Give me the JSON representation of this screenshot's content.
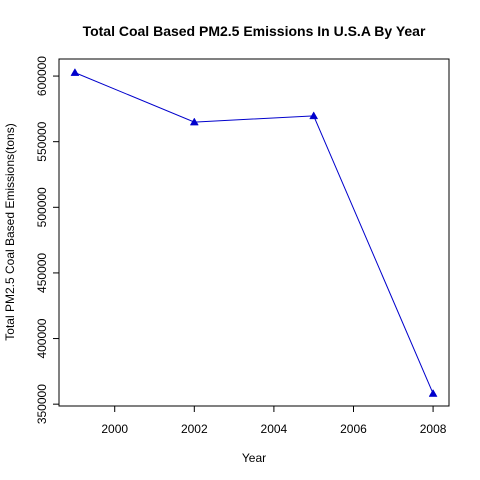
{
  "chart_data": {
    "type": "line",
    "title": "Total Coal Based PM2.5 Emissions In U.S.A By Year",
    "xlabel": "Year",
    "ylabel": "Total PM2.5 Coal Based Emissions(tons)",
    "x": [
      1999,
      2002,
      2005,
      2008
    ],
    "series": [
      {
        "values": [
          602624.1,
          564940.98,
          569654.7,
          358083.9
        ]
      }
    ],
    "xlim": [
      1998.6,
      2008.4
    ],
    "ylim": [
      348600,
      613000
    ],
    "xticks": [
      2000,
      2002,
      2004,
      2006,
      2008
    ],
    "xtick_labels": [
      "2000",
      "2002",
      "2004",
      "2006",
      "2008"
    ],
    "yticks": [
      350000,
      400000,
      450000,
      500000,
      550000,
      600000
    ],
    "ytick_labels": [
      "350000",
      "400000",
      "450000",
      "500000",
      "550000",
      "600000"
    ],
    "line_color": "#0000cc",
    "marker": "triangle",
    "grid": false
  }
}
